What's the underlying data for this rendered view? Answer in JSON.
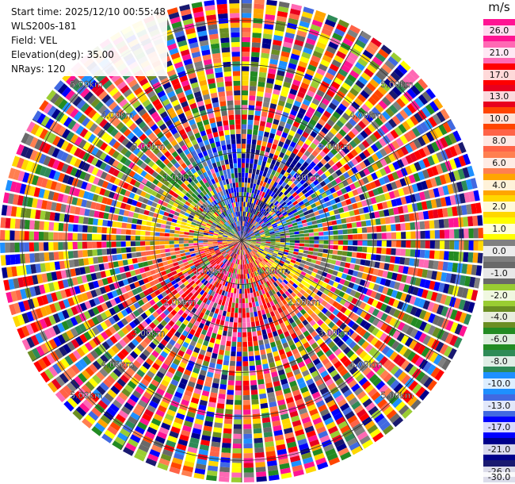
{
  "header": {
    "start_time": "Start time: 2025/12/10 00:55:48",
    "station": "WLS200s-181",
    "field": "Field: VEL",
    "elevation": "Elevation(deg): 35.00",
    "nrays": "NRays: 120"
  },
  "chart_data": {
    "type": "heatmap",
    "projection": "polar-ppi",
    "title": "",
    "field": "VEL",
    "n_rays": 120,
    "range_rings_km": [
      1.0,
      2.0,
      3.0,
      4.0,
      5.0
    ],
    "ring_labels": [
      "1.00km",
      "2.00km",
      "3.00km",
      "4.00km",
      "5.00km"
    ],
    "max_range_km": 5.5,
    "colorbar": {
      "unit": "m/s",
      "ticks": [
        "26.0",
        "21.0",
        "17.0",
        "13.0",
        "10.0",
        "8.0",
        "6.0",
        "4.0",
        "2.0",
        "1.0",
        "0.0",
        "-1.0",
        "-2.0",
        "-4.0",
        "-6.0",
        "-8.0",
        "-10.0",
        "-13.0",
        "-17.0",
        "-21.0",
        "-26.0",
        "-30.0"
      ],
      "colors": [
        "#ff1493",
        "#ff69b4",
        "#ff0000",
        "#e8001e",
        "#ff4500",
        "#ff6347",
        "#ff7f50",
        "#ffa500",
        "#ffd700",
        "#ffff00",
        "#808080",
        "#696969",
        "#9acd32",
        "#6b8e23",
        "#228b22",
        "#2e8b57",
        "#1e90ff",
        "#4169e1",
        "#0000ff",
        "#00008b",
        "#191970"
      ]
    }
  }
}
